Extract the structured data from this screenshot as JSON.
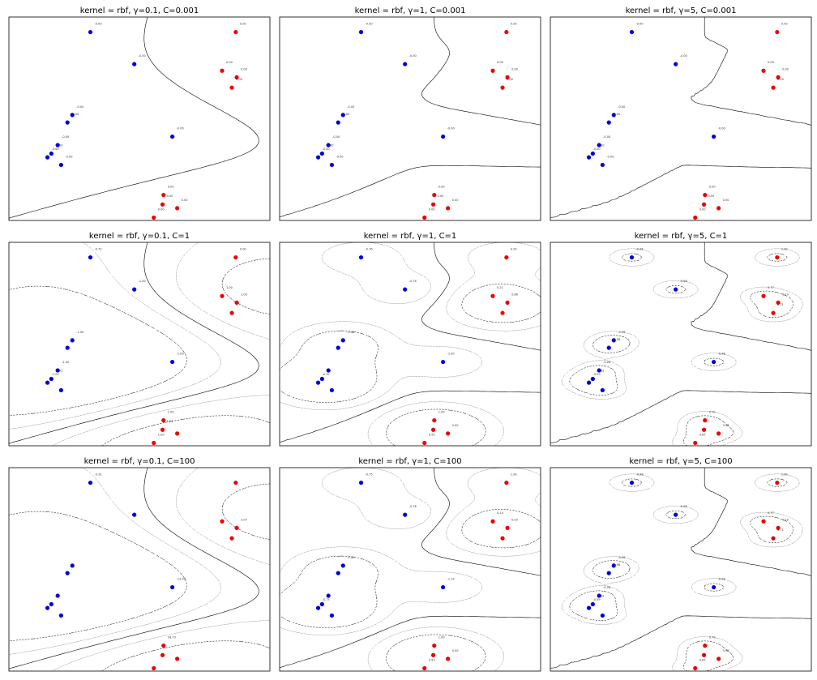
{
  "chart_data": {
    "type": "scatter",
    "layout": "3x3 grid of subplots, no axis ticks",
    "colors": {
      "class_neg": "#0000dd",
      "class_pos": "#ee0000",
      "decision_boundary": "#000000",
      "margin": "#000000",
      "level_lines": "#999999"
    },
    "grid": false,
    "points": [
      {
        "x": 0.72,
        "y": 8.6,
        "cls": "neg"
      },
      {
        "x": 1.62,
        "y": 6.9,
        "cls": "neg"
      },
      {
        "x": 0.35,
        "y": 4.2,
        "cls": "neg"
      },
      {
        "x": 0.25,
        "y": 3.8,
        "cls": "neg"
      },
      {
        "x": 0.05,
        "y": 2.6,
        "cls": "neg"
      },
      {
        "x": -0.08,
        "y": 2.15,
        "cls": "neg"
      },
      {
        "x": -0.16,
        "y": 1.95,
        "cls": "neg"
      },
      {
        "x": 0.12,
        "y": 1.55,
        "cls": "neg"
      },
      {
        "x": 2.4,
        "y": 3.05,
        "cls": "neg"
      },
      {
        "x": 3.7,
        "y": 8.6,
        "cls": "pos"
      },
      {
        "x": 3.42,
        "y": 6.55,
        "cls": "pos"
      },
      {
        "x": 3.72,
        "y": 6.2,
        "cls": "pos"
      },
      {
        "x": 3.62,
        "y": 5.65,
        "cls": "pos"
      },
      {
        "x": 2.22,
        "y": -0.05,
        "cls": "pos"
      },
      {
        "x": 2.2,
        "y": -0.55,
        "cls": "pos"
      },
      {
        "x": 2.5,
        "y": -0.75,
        "cls": "pos"
      },
      {
        "x": 2.02,
        "y": -1.25,
        "cls": "pos"
      }
    ],
    "panels": [
      {
        "title": "kernel = rbf, γ=0.1, C=0.001",
        "gamma": 0.1,
        "C": 0.001,
        "labels": [
          "-0.00",
          "-0.00",
          "-0.00",
          "-0.00",
          "-0.00",
          "-0.00",
          "-0.00",
          "-0.00",
          "-0.00",
          "0.00",
          "0.00",
          "0.00",
          "0.00",
          "0.00",
          "0.00",
          "0.00",
          "0.00"
        ]
      },
      {
        "title": "kernel = rbf, γ=1, C=0.001",
        "gamma": 1,
        "C": 0.001,
        "labels": [
          "-0.00",
          "-0.00",
          "-0.00",
          "-0.00",
          "-0.00",
          "-0.00",
          "-0.00",
          "-0.00",
          "-0.00",
          "0.00",
          "0.00",
          "0.00",
          "0.00",
          "0.00",
          "0.00",
          "0.00",
          "0.00"
        ]
      },
      {
        "title": "kernel = rbf, γ=5, C=0.001",
        "gamma": 5,
        "C": 0.001,
        "labels": [
          "-0.00",
          "-0.00",
          "-0.00",
          "-0.00",
          "-0.00",
          "-0.00",
          "-0.00",
          "-0.00",
          "-0.00",
          "0.00",
          "0.00",
          "0.00",
          "0.00",
          "0.00",
          "0.00",
          "0.00",
          "0.00"
        ]
      },
      {
        "title": "kernel = rbf, γ=0.1, C=1",
        "gamma": 0.1,
        "C": 1,
        "labels": [
          "-0.72",
          "-1.00",
          "-1.00",
          "",
          "-1.00",
          "-0.72",
          "-1.00",
          "",
          "-1.00",
          "0.00",
          "1.00",
          "1.00",
          "",
          "1.00",
          "1.00",
          "",
          "1.00"
        ]
      },
      {
        "title": "kernel = rbf, γ=1, C=1",
        "gamma": 1,
        "C": 1,
        "labels": [
          "-0.76",
          "-0.76",
          "-0.48",
          "",
          "",
          "",
          "-0.70",
          "",
          "-1.00",
          "0.93",
          "0.21",
          "0.86",
          "",
          "1.00",
          "",
          "0.00",
          "0.55"
        ]
      },
      {
        "title": "kernel = rbf, γ=5, C=1",
        "gamma": 5,
        "C": 1,
        "labels": [
          "-0.98",
          "-0.98",
          "-0.56",
          "-0.56",
          "-0.28",
          "-0.42",
          "-0.59",
          "",
          "-0.98",
          "1.00",
          "0.77",
          "0.19",
          "0.71",
          "0.79",
          "",
          "0.98",
          "0.87"
        ]
      },
      {
        "title": "kernel = rbf, γ=0.1, C=100",
        "gamma": 0.1,
        "C": 100,
        "labels": [
          "-3.32",
          "",
          "",
          "",
          "",
          "",
          "",
          "",
          "-13.59",
          "",
          "",
          "3.07",
          "",
          "16.73",
          "",
          "",
          ""
        ]
      },
      {
        "title": "kernel = rbf, γ=1, C=100",
        "gamma": 1,
        "C": 100,
        "labels": [
          "-0.75",
          "-0.76",
          "-0.49",
          "",
          "",
          "",
          "-0.73",
          "",
          "-1.14",
          "1.00",
          "0.14",
          "0.93",
          "",
          "1.00",
          "",
          "0.00",
          "0.53"
        ]
      },
      {
        "title": "kernel = rbf, γ=5, C=100",
        "gamma": 5,
        "C": 100,
        "labels": [
          "-0.98",
          "-0.98",
          "-0.56",
          "-0.56",
          "-0.28",
          "-0.42",
          "-0.59",
          "",
          "-0.98",
          "1.00",
          "0.77",
          "0.19",
          "0.71",
          "0.79",
          "",
          "0.98",
          "0.87"
        ]
      }
    ]
  }
}
